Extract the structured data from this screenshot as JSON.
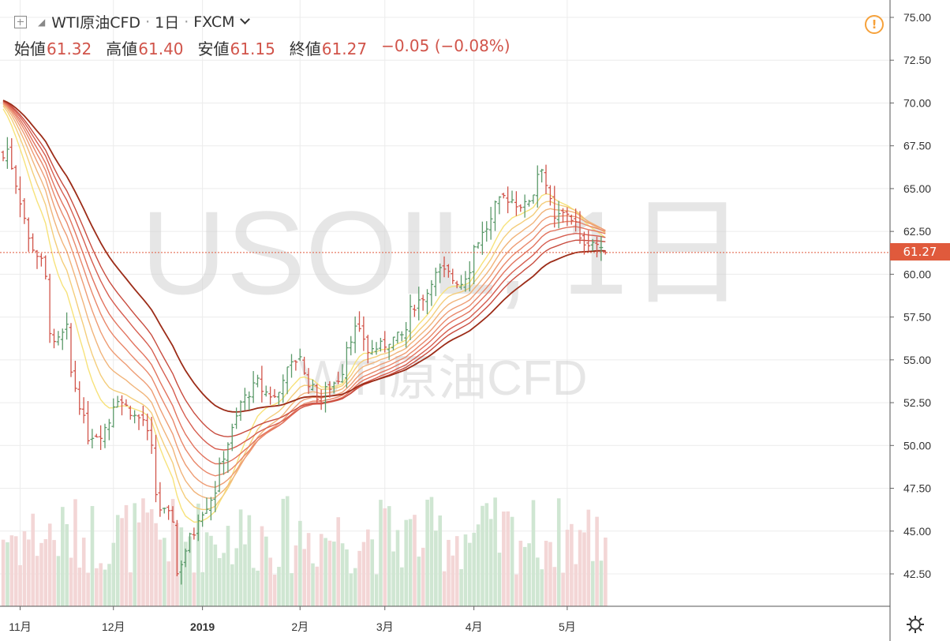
{
  "header": {
    "symbol": "WTI原油CFD",
    "dot": "·",
    "interval": "1日",
    "exchange": "FXCM",
    "ohlc": [
      {
        "label": "始値",
        "value": "61.32"
      },
      {
        "label": "高値",
        "value": "61.40"
      },
      {
        "label": "安値",
        "value": "61.15"
      },
      {
        "label": "終値",
        "value": "61.27"
      }
    ],
    "change": "−0.05 (−0.08%)"
  },
  "watermark": {
    "line1": "USOIL, 1日",
    "line2": "WTI原油CFD"
  },
  "current_price": "61.27",
  "colors": {
    "up": "#5b9a6a",
    "down": "#d1544a",
    "volume_up": "#cfe6d2",
    "volume_down": "#f3d6d6",
    "ma_ribbon": [
      "#f7e27a",
      "#f4cd7b",
      "#f1b47a",
      "#ee9c74",
      "#e9876a",
      "#e2735e",
      "#d65d4f",
      "#c84c3f",
      "#9c2c18"
    ],
    "price_line": "#e05a3c",
    "warning": "#f6a13a"
  },
  "icons": {
    "expand": "plus-square-icon",
    "warning": "warning-icon",
    "settings": "gear-icon"
  },
  "chart_data": {
    "type": "candlestick",
    "y_axis": {
      "side": "right",
      "range": [
        41.0,
        75.5
      ],
      "ticks": [
        "75.00",
        "72.50",
        "70.00",
        "67.50",
        "65.00",
        "62.50",
        "60.00",
        "57.50",
        "55.00",
        "52.50",
        "50.00",
        "47.50",
        "45.00",
        "42.50"
      ]
    },
    "x_axis": {
      "labels": [
        "11月",
        "12月",
        "2019",
        "2月",
        "3月",
        "4月",
        "5月"
      ]
    },
    "x_label_dates": [
      "2018-11-01",
      "2018-12-01",
      "2019-01-01",
      "2019-02-01",
      "2019-03-01",
      "2019-04-01",
      "2019-05-01"
    ],
    "start_date": "2018-10-26",
    "grid": true,
    "anchors": [
      {
        "date": "2018-10-26",
        "close": 66.8
      },
      {
        "date": "2018-10-29",
        "close": 67.3
      },
      {
        "date": "2018-11-02",
        "close": 63.3
      },
      {
        "date": "2018-11-08",
        "close": 60.7
      },
      {
        "date": "2018-11-13",
        "close": 55.8
      },
      {
        "date": "2018-11-16",
        "close": 56.8
      },
      {
        "date": "2018-11-20",
        "close": 53.4
      },
      {
        "date": "2018-11-23",
        "close": 50.5
      },
      {
        "date": "2018-11-28",
        "close": 50.7
      },
      {
        "date": "2018-12-04",
        "close": 52.8
      },
      {
        "date": "2018-12-07",
        "close": 52.0
      },
      {
        "date": "2018-12-12",
        "close": 51.5
      },
      {
        "date": "2018-12-18",
        "close": 46.3
      },
      {
        "date": "2018-12-21",
        "close": 45.7
      },
      {
        "date": "2018-12-24",
        "close": 42.5
      },
      {
        "date": "2018-12-27",
        "close": 44.6
      },
      {
        "date": "2019-01-02",
        "close": 46.5
      },
      {
        "date": "2019-01-07",
        "close": 48.7
      },
      {
        "date": "2019-01-11",
        "close": 51.6
      },
      {
        "date": "2019-01-18",
        "close": 53.7
      },
      {
        "date": "2019-01-24",
        "close": 52.8
      },
      {
        "date": "2019-02-01",
        "close": 55.3
      },
      {
        "date": "2019-02-08",
        "close": 52.5
      },
      {
        "date": "2019-02-14",
        "close": 53.9
      },
      {
        "date": "2019-02-20",
        "close": 56.8
      },
      {
        "date": "2019-02-25",
        "close": 55.5
      },
      {
        "date": "2019-03-01",
        "close": 55.9
      },
      {
        "date": "2019-03-07",
        "close": 56.4
      },
      {
        "date": "2019-03-12",
        "close": 58.2
      },
      {
        "date": "2019-03-20",
        "close": 60.2
      },
      {
        "date": "2019-03-27",
        "close": 59.5
      },
      {
        "date": "2019-04-01",
        "close": 61.6
      },
      {
        "date": "2019-04-05",
        "close": 63.1
      },
      {
        "date": "2019-04-10",
        "close": 64.5
      },
      {
        "date": "2019-04-17",
        "close": 64.0
      },
      {
        "date": "2019-04-23",
        "close": 66.3
      },
      {
        "date": "2019-04-26",
        "close": 63.1
      },
      {
        "date": "2019-05-01",
        "close": 63.6
      },
      {
        "date": "2019-05-06",
        "close": 61.9
      },
      {
        "date": "2019-05-09",
        "close": 61.9
      },
      {
        "date": "2019-05-13",
        "close": 61.3
      },
      {
        "date": "2019-05-14",
        "close": 61.27
      }
    ],
    "ma_periods": [
      10,
      14,
      18,
      22,
      26,
      30,
      35,
      40,
      50
    ],
    "last_bar": {
      "open": 61.32,
      "high": 61.4,
      "low": 61.15,
      "close": 61.27
    }
  }
}
